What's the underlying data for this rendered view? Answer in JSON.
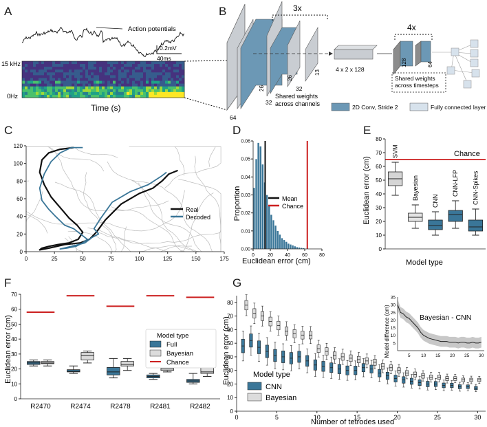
{
  "panel_labels": [
    "A",
    "B",
    "C",
    "D",
    "E",
    "F",
    "G"
  ],
  "colors": {
    "blue": "#3a7698",
    "blue_dark": "#2d5f7e",
    "gray_box": "#d9d9d9",
    "red": "#cc1f1f",
    "black": "#111111",
    "traj_gray": "#bcbcbc"
  },
  "panel_a": {
    "annotation": "Action potentials",
    "scale_voltage": "0.2mV",
    "scale_time": "40ms",
    "freq_top": "15 kHz",
    "freq_bottom": "0Hz",
    "xlabel": "Time (s)"
  },
  "panel_b": {
    "repeat_conv": "3x",
    "repeat_fc": "4x",
    "dims": [
      "64",
      "26",
      "32",
      "26",
      "32",
      "13",
      "128",
      "64"
    ],
    "flat_shape": "4 x 2 x 128",
    "shared_channels": "Shared weights across channels",
    "shared_timesteps": "Shared weights across timesteps",
    "legend": [
      "2D Conv, Stride 2",
      "Fully connected layer"
    ]
  },
  "chart_data": [
    {
      "panel": "C",
      "type": "line",
      "xlim": [
        0,
        175
      ],
      "ylim": [
        0,
        120
      ],
      "xticks": [
        0,
        25,
        50,
        75,
        100,
        125,
        150,
        175
      ],
      "yticks": [
        0,
        20,
        40,
        60,
        80,
        100,
        120
      ],
      "legend": [
        "Real",
        "Decoded"
      ],
      "series": [
        {
          "name": "Real",
          "x": [
            42,
            30,
            20,
            14,
            12,
            16,
            22,
            30,
            38,
            45,
            50,
            46,
            38,
            28,
            20,
            14,
            12,
            20,
            34,
            48,
            56,
            62,
            70,
            84,
            100,
            112,
            120,
            126,
            134
          ],
          "y": [
            118,
            116,
            112,
            104,
            90,
            76,
            62,
            50,
            38,
            30,
            22,
            14,
            10,
            8,
            6,
            4,
            2,
            4,
            8,
            10,
            14,
            22,
            36,
            54,
            66,
            72,
            80,
            88,
            92
          ]
        },
        {
          "name": "Decoded",
          "x": [
            50,
            40,
            30,
            22,
            16,
            12,
            14,
            20,
            26,
            34,
            42,
            48,
            54,
            50,
            44,
            36,
            30,
            40,
            52,
            58,
            64,
            60,
            66,
            76,
            92,
            108,
            120,
            124
          ],
          "y": [
            118,
            118,
            112,
            102,
            88,
            72,
            58,
            48,
            40,
            30,
            26,
            20,
            14,
            10,
            6,
            4,
            3,
            6,
            10,
            16,
            20,
            26,
            38,
            56,
            68,
            76,
            86,
            90
          ]
        }
      ]
    },
    {
      "panel": "D",
      "type": "bar",
      "xlabel": "Euclidean error (cm)",
      "ylabel": "Proportion",
      "xlim": [
        0,
        80
      ],
      "ylim": [
        0,
        0.06
      ],
      "xticks": [
        0,
        20,
        40,
        60,
        80
      ],
      "yticks": [
        0.0,
        0.01,
        0.02,
        0.03,
        0.04,
        0.05,
        0.06
      ],
      "bin_width": 2.5,
      "values": [
        0.034,
        0.05,
        0.059,
        0.057,
        0.047,
        0.037,
        0.03,
        0.024,
        0.019,
        0.016,
        0.013,
        0.01,
        0.008,
        0.006,
        0.005,
        0.004,
        0.003,
        0.0025,
        0.002,
        0.0015,
        0.001,
        0.0008,
        0.0006,
        0.0005
      ],
      "mean": 14,
      "chance": 63,
      "legend": [
        "Mean",
        "Chance"
      ]
    },
    {
      "panel": "E",
      "type": "box",
      "xlabel": "Model type",
      "ylabel": "Euclidean error (cm)",
      "ylim": [
        0,
        80
      ],
      "yticks": [
        0,
        10,
        20,
        30,
        40,
        50,
        60,
        70,
        80
      ],
      "chance": 65,
      "chance_label": "Chance",
      "boxes": [
        {
          "label": "SVM",
          "min": 39,
          "q1": 46,
          "median": 51,
          "q3": 56,
          "max": 63,
          "color": "gray"
        },
        {
          "label": "Bayesian",
          "min": 15,
          "q1": 20,
          "median": 23,
          "q3": 26,
          "max": 32,
          "color": "light"
        },
        {
          "label": "CNN",
          "min": 10,
          "q1": 14,
          "median": 17,
          "q3": 21,
          "max": 27,
          "color": "blue"
        },
        {
          "label": "CNN-LFP",
          "min": 15,
          "q1": 20,
          "median": 25,
          "q3": 28,
          "max": 35,
          "color": "blue"
        },
        {
          "label": "CNN-Spikes",
          "min": 10,
          "q1": 13,
          "median": 16,
          "q3": 21,
          "max": 29,
          "color": "blue"
        }
      ]
    },
    {
      "panel": "F",
      "type": "box",
      "xlabel": "",
      "ylabel": "Euclidean error (cm)",
      "ylim": [
        0,
        70
      ],
      "yticks": [
        0,
        10,
        20,
        30,
        40,
        50,
        60,
        70
      ],
      "legend_title": "Model type",
      "legend": [
        "Full",
        "Bayesian",
        "Chance"
      ],
      "categories": [
        "R2470",
        "R2474",
        "R2478",
        "R2481",
        "R2482"
      ],
      "chance": [
        58,
        69,
        62,
        69,
        68
      ],
      "full": [
        {
          "min": 22,
          "q1": 23,
          "median": 24,
          "q3": 25,
          "max": 26
        },
        {
          "min": 17,
          "q1": 18,
          "median": 18.5,
          "q3": 19.5,
          "max": 22
        },
        {
          "min": 14,
          "q1": 16,
          "median": 18,
          "q3": 21,
          "max": 27
        },
        {
          "min": 13,
          "q1": 14,
          "median": 15,
          "q3": 16,
          "max": 17
        },
        {
          "min": 10,
          "q1": 11,
          "median": 12,
          "q3": 13,
          "max": 17
        }
      ],
      "bayesian": [
        {
          "min": 22,
          "q1": 23.5,
          "median": 24,
          "q3": 25,
          "max": 26
        },
        {
          "min": 24,
          "q1": 26,
          "median": 29,
          "q3": 31,
          "max": 32
        },
        {
          "min": 19,
          "q1": 22,
          "median": 23,
          "q3": 25,
          "max": 27
        },
        {
          "min": 18,
          "q1": 19,
          "median": 20,
          "q3": 22,
          "max": 30
        },
        {
          "min": 15,
          "q1": 17,
          "median": 18,
          "q3": 21,
          "max": 23
        }
      ]
    },
    {
      "panel": "G",
      "type": "box",
      "xlabel": "Number of tetrodes used",
      "ylabel": "Euclidean error (cm)",
      "xlim": [
        0,
        31
      ],
      "ylim": [
        0,
        85
      ],
      "xticks": [
        0,
        5,
        10,
        15,
        20,
        25,
        30
      ],
      "yticks": [
        0,
        10,
        20,
        30,
        40,
        50,
        60,
        70,
        80
      ],
      "legend_title": "Model type",
      "legend": [
        "CNN",
        "Bayesian"
      ],
      "x": [
        1,
        2,
        3,
        4,
        5,
        6,
        7,
        8,
        9,
        10,
        11,
        12,
        13,
        14,
        15,
        16,
        17,
        18,
        19,
        20,
        21,
        22,
        23,
        24,
        25,
        26,
        27,
        28,
        29,
        30
      ],
      "cnn_median": [
        48,
        52,
        47,
        44,
        41,
        40,
        39,
        40,
        37,
        34,
        33,
        32,
        31,
        30,
        30,
        32,
        31,
        28,
        26,
        24,
        23,
        22,
        21,
        20,
        20,
        19,
        19,
        18,
        18,
        17
      ],
      "bayesian_median": [
        78,
        72,
        70,
        66,
        63,
        59,
        57,
        56,
        56,
        46,
        44,
        41,
        40,
        39,
        38,
        37,
        36,
        33,
        32,
        30,
        28,
        27,
        26,
        25,
        25,
        24,
        24,
        23,
        23,
        23
      ],
      "inset": {
        "title": "Bayesian - CNN",
        "ylabel": "Model difference (cm)",
        "xlim": [
          1,
          31
        ],
        "ylim": [
          0,
          35
        ],
        "xticks": [
          5,
          10,
          15,
          20,
          25,
          30
        ],
        "yticks": [
          5,
          10,
          15,
          20,
          25,
          30,
          35
        ],
        "x": [
          1,
          2,
          3,
          4,
          5,
          6,
          7,
          8,
          9,
          10,
          11,
          12,
          13,
          14,
          15,
          16,
          17,
          18,
          19,
          20,
          21,
          22,
          23,
          24,
          25,
          26,
          27,
          28,
          29,
          30
        ],
        "y": [
          30,
          25,
          24,
          22,
          21,
          19,
          17,
          15,
          12,
          10,
          9,
          8,
          7.5,
          7,
          6.5,
          6,
          6,
          6,
          5.5,
          5.5,
          5.5,
          5,
          5.5,
          5.5,
          5,
          5,
          5.5,
          5,
          5,
          5.5
        ],
        "band": 3.5
      }
    }
  ]
}
